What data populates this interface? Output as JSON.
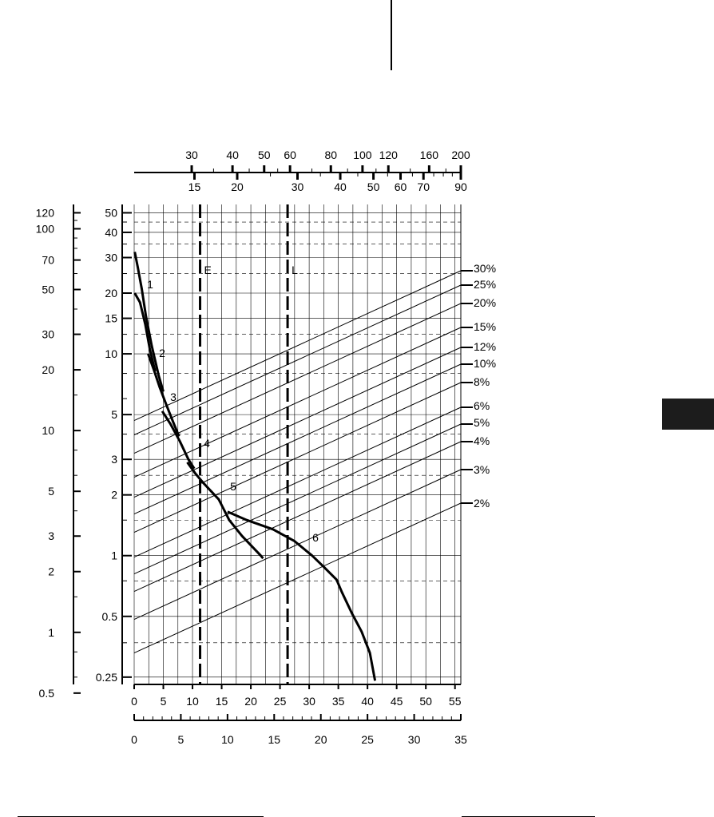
{
  "chart_data": {
    "type": "line",
    "title": "",
    "xlabel": "",
    "ylabel": "",
    "grid": true,
    "y_scale": "log",
    "xlim": [
      0,
      56
    ],
    "ylim": [
      0.23,
      55
    ],
    "x_axes": {
      "bottom_primary": [
        0,
        5,
        10,
        15,
        20,
        25,
        30,
        35,
        40,
        45,
        50,
        55
      ],
      "bottom_secondary": [
        0,
        5,
        10,
        15,
        20,
        25,
        30,
        35
      ],
      "top_inner": [
        15,
        20,
        30,
        40,
        50,
        60,
        70,
        90
      ],
      "top_outer": [
        30,
        40,
        50,
        60,
        80,
        100,
        120,
        160,
        200
      ]
    },
    "y_axes": {
      "inner": [
        "50",
        "40",
        "30",
        "20",
        "15",
        "10",
        "5",
        "3",
        "2",
        "1",
        "0.5",
        "0.25"
      ],
      "outer": [
        "120",
        "100",
        "70",
        "50",
        "30",
        "20",
        "10",
        "5",
        "3",
        "2",
        "1",
        "0.5"
      ]
    },
    "grade_lines": [
      "30%",
      "25%",
      "20%",
      "15%",
      "12%",
      "10%",
      "8%",
      "6%",
      "5%",
      "4%",
      "3%",
      "2%"
    ],
    "vertical_markers": [
      {
        "label": "E",
        "x": 11.3
      },
      {
        "label": "L",
        "x": 26.3
      }
    ],
    "series": [
      {
        "name": "1",
        "points": [
          [
            0.1,
            32
          ],
          [
            0.6,
            27
          ],
          [
            1.3,
            21
          ],
          [
            2.0,
            15.5
          ],
          [
            3.0,
            11
          ],
          [
            4.2,
            7.8
          ],
          [
            5.0,
            6.5
          ]
        ]
      },
      {
        "name": "",
        "points": [
          [
            0.1,
            20
          ],
          [
            1.0,
            18
          ],
          [
            1.9,
            14
          ],
          [
            2.7,
            10.5
          ],
          [
            3.6,
            8.2
          ]
        ]
      },
      {
        "name": "2",
        "points": [
          [
            2.4,
            10
          ],
          [
            3.4,
            8.3
          ],
          [
            4.4,
            6.8
          ],
          [
            5.5,
            5.6
          ],
          [
            6.8,
            4.5
          ],
          [
            7.7,
            3.9
          ]
        ]
      },
      {
        "name": "3",
        "points": [
          [
            4.8,
            5.2
          ],
          [
            6.2,
            4.5
          ],
          [
            7.8,
            3.7
          ],
          [
            9.3,
            3.0
          ],
          [
            10.3,
            2.7
          ]
        ]
      },
      {
        "name": "4",
        "points": [
          [
            9.1,
            2.9
          ],
          [
            10.5,
            2.55
          ],
          [
            11.8,
            2.3
          ],
          [
            14.5,
            1.9
          ],
          [
            16.3,
            1.5
          ],
          [
            18.5,
            1.25
          ],
          [
            21.7,
            1.0
          ],
          [
            22.1,
            0.97
          ]
        ]
      },
      {
        "name": "5",
        "points": [
          [
            16.0,
            1.65
          ],
          [
            19.3,
            1.5
          ],
          [
            23.8,
            1.35
          ],
          [
            27.5,
            1.18
          ],
          [
            30.5,
            1.0
          ],
          [
            32.5,
            0.88
          ],
          [
            34.7,
            0.76
          ],
          [
            35.6,
            0.66
          ],
          [
            37.3,
            0.52
          ],
          [
            39.0,
            0.42
          ],
          [
            40.4,
            0.33
          ],
          [
            41.3,
            0.24
          ]
        ]
      }
    ]
  }
}
